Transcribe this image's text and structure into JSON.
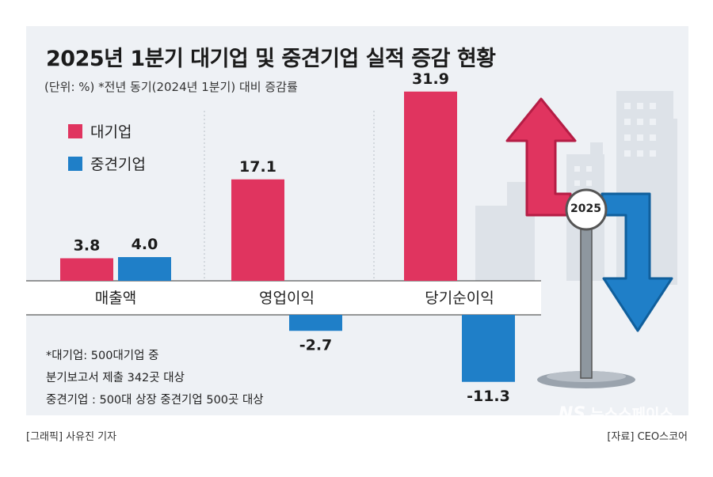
{
  "title": "2025년 1분기 대기업 및 중견기업 실적 증감 현황",
  "subtitle": "(단위: %)  *전년 동기(2024년 1분기) 대비 증감률",
  "sign_label": "2025",
  "notes": [
    "*대기업: 500대기업 중",
    "분기보고서 제출 342곳 대상",
    "중견기업 : 500대 상장 중견기업 500곳 대상"
  ],
  "footer": {
    "credit": "[그래픽] 사유진 기자",
    "source": "[자료] CEO스코어"
  },
  "watermark": {
    "mark": "NS",
    "name": "뉴스스페이스"
  },
  "colors": {
    "large": "#e0345f",
    "mid": "#1f7fc8",
    "background": "#eef1f5"
  },
  "chart_data": {
    "type": "bar",
    "categories": [
      "매출액",
      "영업이익",
      "당기순이익"
    ],
    "series": [
      {
        "name": "대기업",
        "values": [
          3.8,
          17.1,
          31.9
        ],
        "color": "#e0345f"
      },
      {
        "name": "중견기업",
        "values": [
          4.0,
          -2.7,
          -11.3
        ],
        "color": "#1f7fc8"
      }
    ],
    "title": "2025년 1분기 대기업 및 중견기업 실적 증감 현황",
    "ylabel": "",
    "unit": "%",
    "legend": "top-left",
    "grid": false
  }
}
